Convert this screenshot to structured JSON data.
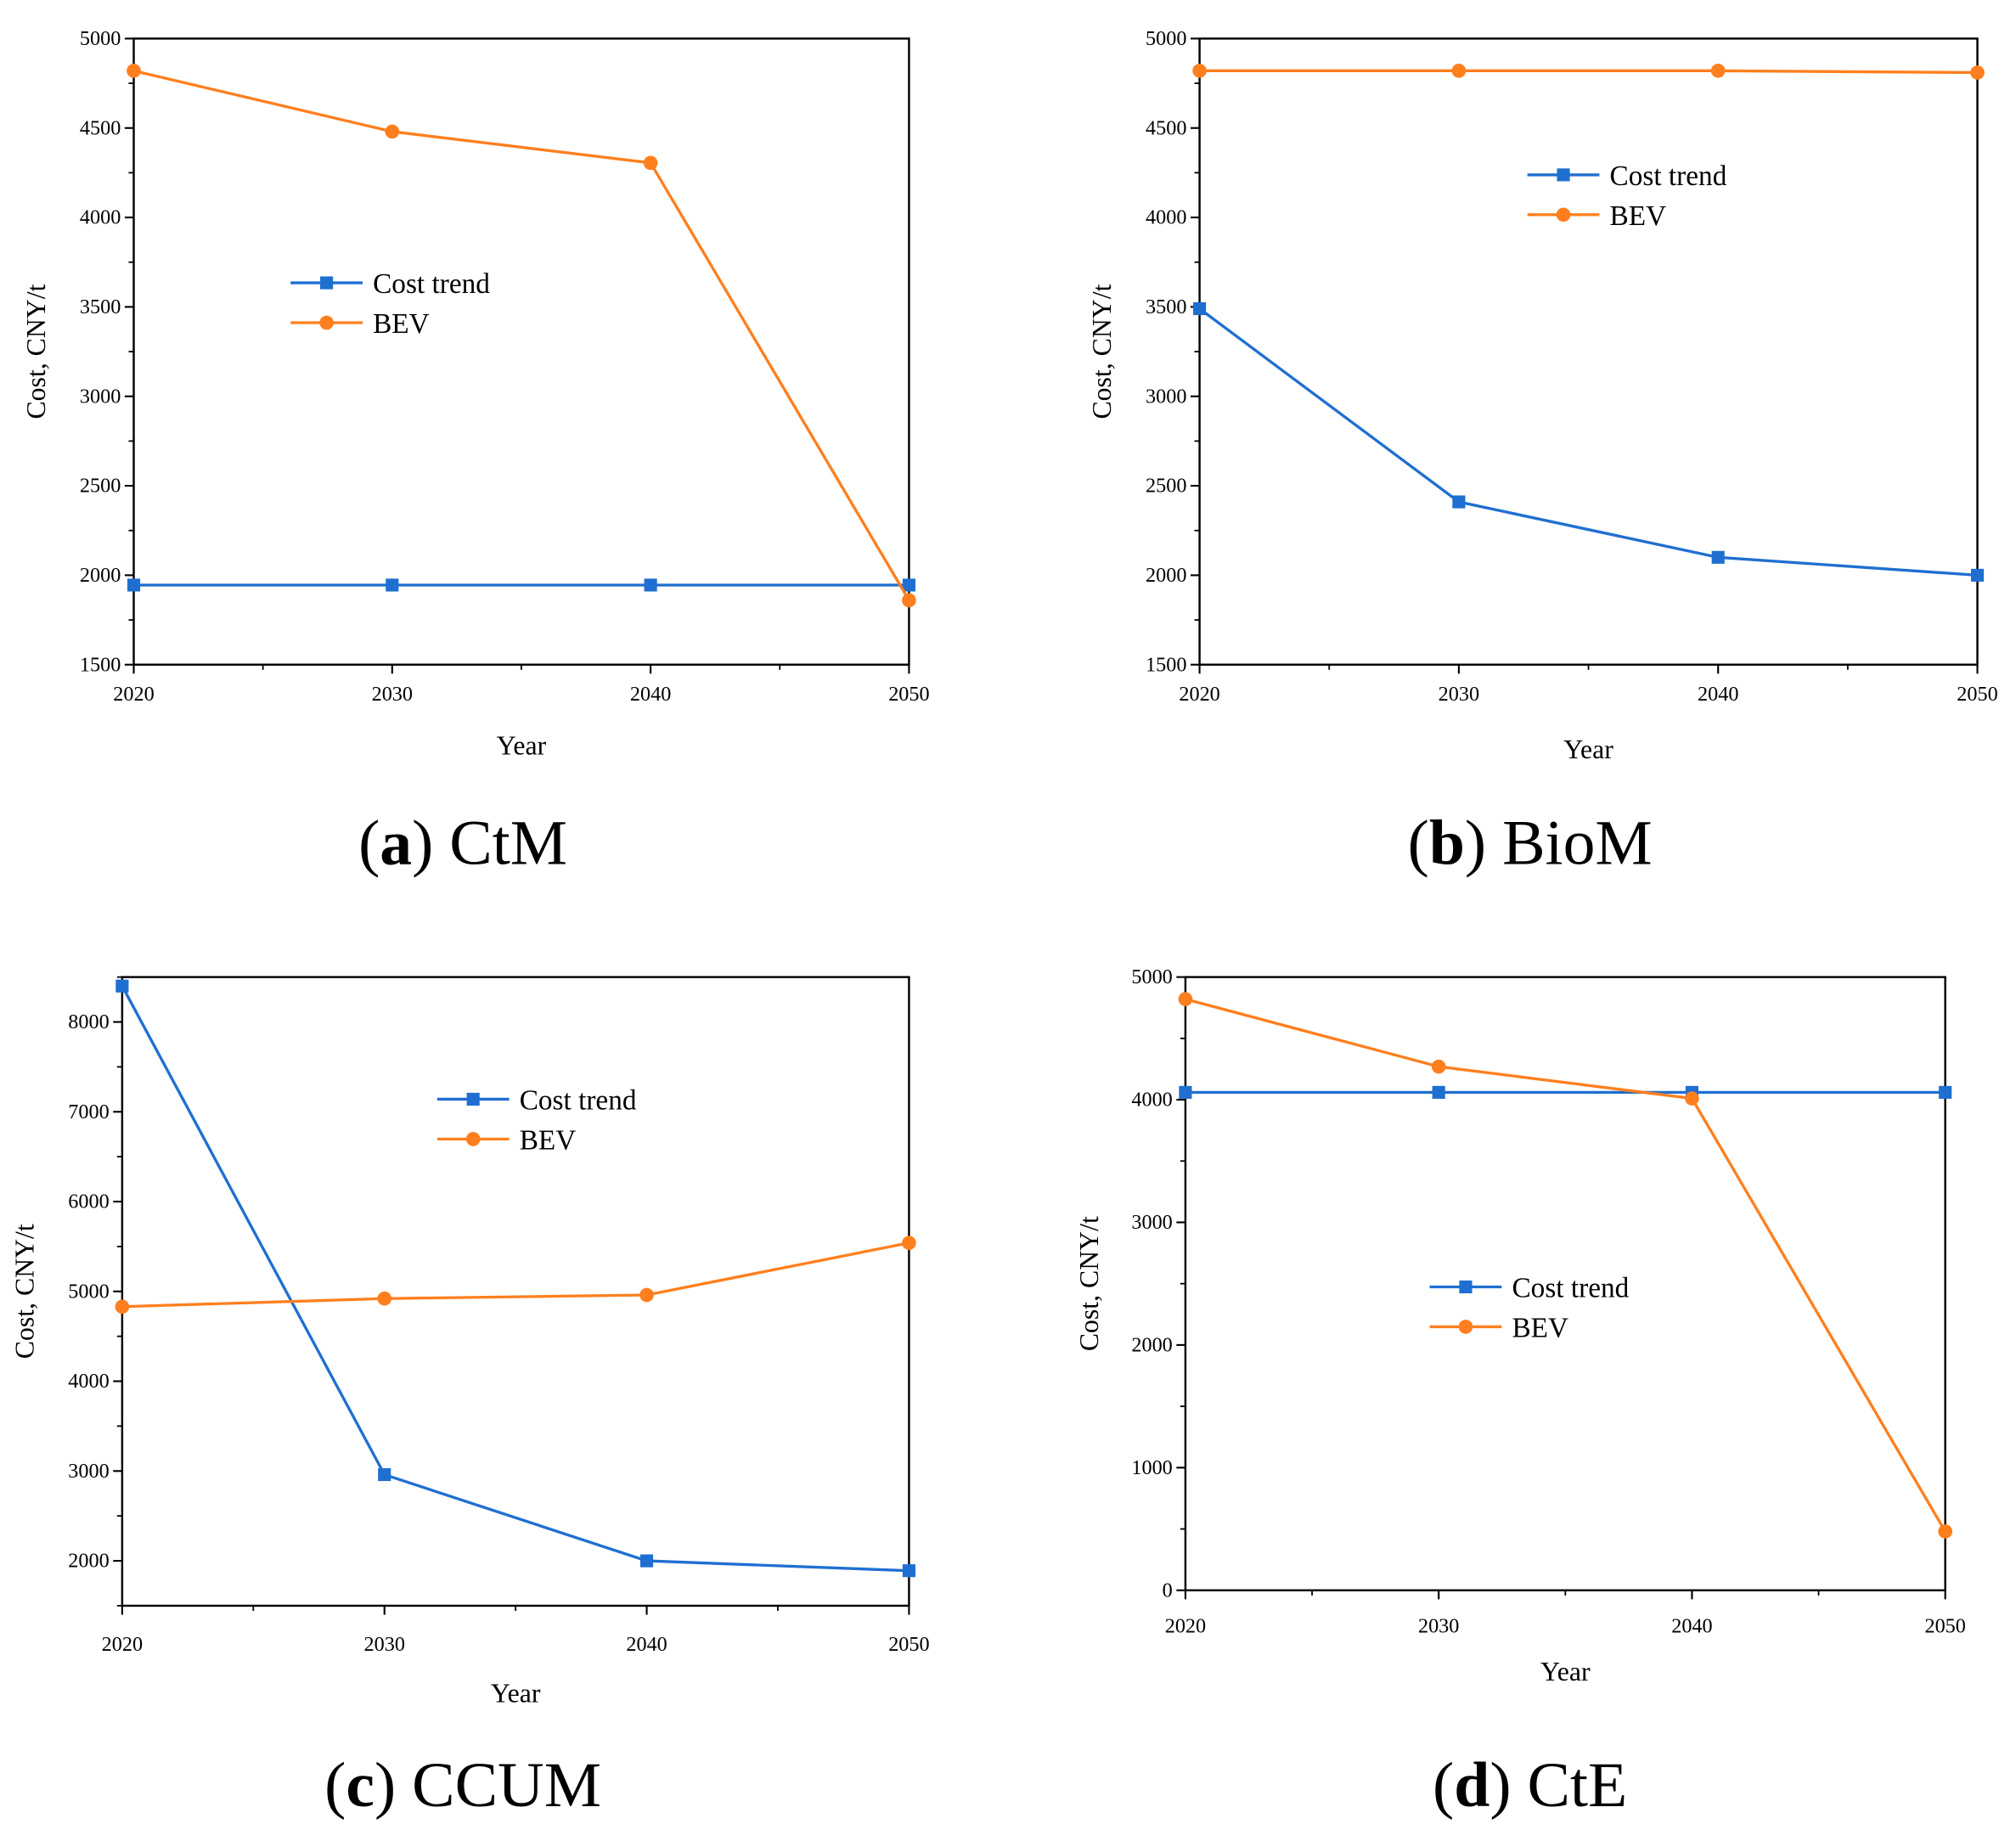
{
  "colors": {
    "cost_trend": "#1f6fd1",
    "bev": "#ff7f1e",
    "axis": "#000000"
  },
  "chart_data": [
    {
      "type": "line",
      "id": "a",
      "caption_letter": "a",
      "caption_name": "CtM",
      "xlabel": "Year",
      "ylabel": "Cost, CNY/t",
      "x": [
        2020,
        2030,
        2040,
        2050
      ],
      "xlim": [
        2020,
        2050
      ],
      "xticks": [
        2020,
        2030,
        2040,
        2050
      ],
      "ylim": [
        1500,
        5000
      ],
      "yticks": [
        1500,
        2000,
        2500,
        3000,
        3500,
        4000,
        4500,
        5000
      ],
      "yminor": 250,
      "legend": "center-left",
      "series": [
        {
          "name": "Cost trend",
          "marker": "square",
          "values": [
            1945,
            1945,
            1945,
            1945
          ]
        },
        {
          "name": "BEV",
          "marker": "circle",
          "values": [
            4820,
            4480,
            4305,
            1860
          ]
        }
      ]
    },
    {
      "type": "line",
      "id": "b",
      "caption_letter": "b",
      "caption_name": "BioM",
      "xlabel": "Year",
      "ylabel": "Cost, CNY/t",
      "x": [
        2020,
        2030,
        2040,
        2050
      ],
      "xlim": [
        2020,
        2050
      ],
      "xticks": [
        2020,
        2030,
        2040,
        2050
      ],
      "ylim": [
        1500,
        5000
      ],
      "yticks": [
        1500,
        2000,
        2500,
        3000,
        3500,
        4000,
        4500,
        5000
      ],
      "yminor": 250,
      "legend": "upper-center",
      "series": [
        {
          "name": "Cost trend",
          "marker": "square",
          "values": [
            3490,
            2410,
            2100,
            2000
          ]
        },
        {
          "name": "BEV",
          "marker": "circle",
          "values": [
            4820,
            4820,
            4820,
            4810
          ]
        }
      ]
    },
    {
      "type": "line",
      "id": "c",
      "caption_letter": "c",
      "caption_name": "CCUM",
      "xlabel": "Year",
      "ylabel": "Cost, CNY/t",
      "x": [
        2020,
        2030,
        2040,
        2050
      ],
      "xlim": [
        2020,
        2050
      ],
      "xticks": [
        2020,
        2030,
        2040,
        2050
      ],
      "ylim": [
        1500,
        8500
      ],
      "yticks": [
        2000,
        3000,
        4000,
        5000,
        6000,
        7000,
        8000
      ],
      "yminor": 500,
      "legend": "upper-center",
      "series": [
        {
          "name": "Cost trend",
          "marker": "square",
          "values": [
            8400,
            2960,
            2000,
            1890
          ]
        },
        {
          "name": "BEV",
          "marker": "circle",
          "values": [
            4830,
            4920,
            4960,
            5540
          ]
        }
      ]
    },
    {
      "type": "line",
      "id": "d",
      "caption_letter": "d",
      "caption_name": "CtE",
      "xlabel": "Year",
      "ylabel": "Cost, CNY/t",
      "x": [
        2020,
        2030,
        2040,
        2050
      ],
      "xlim": [
        2020,
        2050
      ],
      "xticks": [
        2020,
        2030,
        2040,
        2050
      ],
      "ylim": [
        0,
        5000
      ],
      "yticks": [
        0,
        1000,
        2000,
        3000,
        4000,
        5000
      ],
      "yminor": 500,
      "legend": "center",
      "series": [
        {
          "name": "Cost trend",
          "marker": "square",
          "values": [
            4060,
            4060,
            4060,
            4060
          ]
        },
        {
          "name": "BEV",
          "marker": "circle",
          "values": [
            4820,
            4270,
            4010,
            480
          ]
        }
      ]
    }
  ]
}
